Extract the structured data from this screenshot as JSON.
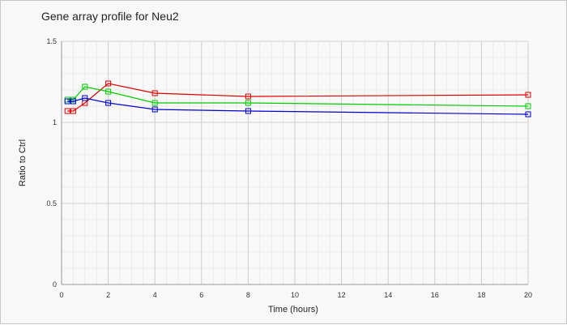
{
  "chart_data": {
    "type": "line",
    "title": "Gene array profile for Neu2",
    "xlabel": "Time (hours)",
    "ylabel": "Ratio to Ctrl",
    "xlim": [
      0,
      20
    ],
    "ylim": [
      0,
      1.5
    ],
    "xticks": [
      0,
      2,
      4,
      6,
      8,
      10,
      12,
      14,
      16,
      18,
      20
    ],
    "yticks": [
      0,
      0.5,
      1,
      1.5
    ],
    "xtick_labels": [
      "0",
      "2",
      "4",
      "6",
      "8",
      "10",
      "12",
      "14",
      "16",
      "18",
      "20"
    ],
    "ytick_labels": [
      "0",
      "0.5",
      "1",
      "1.5"
    ],
    "grid": true,
    "series": [
      {
        "color": "#dd0000",
        "x": [
          0.25,
          0.5,
          1,
          2,
          4,
          8,
          20
        ],
        "y": [
          1.07,
          1.07,
          1.12,
          1.24,
          1.18,
          1.16,
          1.17
        ]
      },
      {
        "color": "#00cc00",
        "x": [
          0.25,
          0.5,
          1,
          2,
          4,
          8,
          20
        ],
        "y": [
          1.14,
          1.14,
          1.22,
          1.19,
          1.12,
          1.12,
          1.1
        ]
      },
      {
        "color": "#0000cc",
        "x": [
          0.25,
          0.5,
          1,
          2,
          4,
          8,
          20
        ],
        "y": [
          1.13,
          1.13,
          1.15,
          1.12,
          1.08,
          1.07,
          1.05
        ]
      }
    ]
  }
}
